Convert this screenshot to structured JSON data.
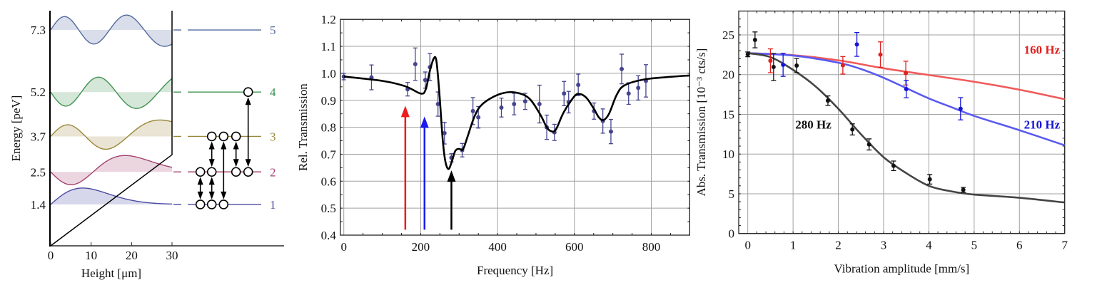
{
  "chart_data": [
    {
      "panel": "energy-levels",
      "type": "line",
      "xlabel": "Height [μm]",
      "ylabel": "Energy [peV]",
      "xlim": [
        0,
        30
      ],
      "xticks": [
        0,
        10,
        20,
        30
      ],
      "ylim": [
        0,
        8
      ],
      "levels": [
        {
          "n": 1,
          "energy": 1.4,
          "tick": "1.4",
          "label": "1",
          "color": "#4b4ba3"
        },
        {
          "n": 2,
          "energy": 2.5,
          "tick": "2.5",
          "label": "2",
          "color": "#a3436f"
        },
        {
          "n": 3,
          "energy": 3.7,
          "tick": "3.7",
          "label": "3",
          "color": "#9a8638"
        },
        {
          "n": 4,
          "energy": 5.2,
          "tick": "5.2",
          "label": "4",
          "color": "#3f9350"
        },
        {
          "n": 5,
          "energy": 7.3,
          "tick": "7.3",
          "label": "5",
          "color": "#52699f"
        }
      ],
      "transition_columns": [
        {
          "states": [
            1,
            2
          ]
        },
        {
          "states": [
            1,
            2,
            3
          ]
        },
        {
          "states": [
            1,
            3
          ]
        },
        {
          "states": [
            2,
            3
          ]
        },
        {
          "states": [
            2,
            4
          ]
        }
      ]
    },
    {
      "panel": "rel-transmission-spectrum",
      "type": "scatter",
      "xlabel": "Frequency [Hz]",
      "ylabel": "Rel. Transmission",
      "xlim": [
        -9,
        900
      ],
      "ylim": [
        0.4,
        1.2
      ],
      "xticks": [
        0,
        200,
        400,
        600,
        800
      ],
      "yticks": [
        "0.4",
        "0.5",
        "0.6",
        "0.7",
        "0.8",
        "0.9",
        "1.0",
        "1.1",
        "1.2"
      ],
      "grid": true,
      "point_color": "#45458f",
      "points": [
        [
          0,
          0.988,
          0.012
        ],
        [
          72,
          0.985,
          0.046
        ],
        [
          166,
          0.941,
          0.025
        ],
        [
          186,
          1.034,
          0.06
        ],
        [
          212,
          0.975,
          0.03
        ],
        [
          224,
          1.023,
          0.05
        ],
        [
          245,
          0.886,
          0.045
        ],
        [
          262,
          0.778,
          0.04
        ],
        [
          280,
          0.687,
          0.015
        ],
        [
          308,
          0.715,
          0.025
        ],
        [
          336,
          0.86,
          0.05
        ],
        [
          350,
          0.837,
          0.04
        ],
        [
          410,
          0.873,
          0.035
        ],
        [
          443,
          0.886,
          0.04
        ],
        [
          472,
          0.896,
          0.03
        ],
        [
          509,
          0.886,
          0.07
        ],
        [
          528,
          0.8,
          0.045
        ],
        [
          548,
          0.781,
          0.03
        ],
        [
          573,
          0.925,
          0.045
        ],
        [
          585,
          0.893,
          0.04
        ],
        [
          610,
          0.957,
          0.04
        ],
        [
          651,
          0.86,
          0.03
        ],
        [
          674,
          0.823,
          0.045
        ],
        [
          695,
          0.784,
          0.045
        ],
        [
          723,
          1.016,
          0.055
        ],
        [
          741,
          0.925,
          0.04
        ],
        [
          766,
          0.946,
          0.045
        ],
        [
          786,
          0.972,
          0.06
        ]
      ],
      "fit": [
        [
          0,
          0.988
        ],
        [
          100,
          0.972
        ],
        [
          160,
          0.952
        ],
        [
          200,
          0.925
        ],
        [
          213,
          0.94
        ],
        [
          224,
          1.01
        ],
        [
          234,
          1.055
        ],
        [
          241,
          1.045
        ],
        [
          249,
          0.92
        ],
        [
          257,
          0.76
        ],
        [
          264,
          0.675
        ],
        [
          272,
          0.645
        ],
        [
          280,
          0.668
        ],
        [
          290,
          0.712
        ],
        [
          300,
          0.72
        ],
        [
          310,
          0.718
        ],
        [
          322,
          0.765
        ],
        [
          340,
          0.84
        ],
        [
          360,
          0.885
        ],
        [
          400,
          0.92
        ],
        [
          440,
          0.93
        ],
        [
          480,
          0.91
        ],
        [
          510,
          0.85
        ],
        [
          528,
          0.8
        ],
        [
          540,
          0.785
        ],
        [
          552,
          0.792
        ],
        [
          572,
          0.855
        ],
        [
          600,
          0.915
        ],
        [
          615,
          0.923
        ],
        [
          632,
          0.908
        ],
        [
          650,
          0.87
        ],
        [
          664,
          0.836
        ],
        [
          676,
          0.827
        ],
        [
          690,
          0.85
        ],
        [
          710,
          0.92
        ],
        [
          730,
          0.955
        ],
        [
          780,
          0.977
        ],
        [
          850,
          0.987
        ],
        [
          900,
          0.992
        ]
      ],
      "arrows": [
        {
          "frequency": 160,
          "from": 0.42,
          "to": 0.88,
          "color": "#ee1c1c"
        },
        {
          "frequency": 210,
          "from": 0.42,
          "to": 0.84,
          "color": "#1a1aee"
        },
        {
          "frequency": 280,
          "from": 0.42,
          "to": 0.64,
          "color": "#000000"
        }
      ]
    },
    {
      "panel": "abs-transmission-vs-amplitude",
      "type": "scatter",
      "xlabel": "Vibration amplitude [mm/s]",
      "ylabel": "Abs. Transmission [10⁻³ cts/s]",
      "xlim": [
        -0.2,
        7
      ],
      "ylim": [
        0,
        28
      ],
      "xticks": [
        0,
        1,
        2,
        3,
        4,
        5,
        6,
        7
      ],
      "yticks": [
        0,
        5,
        10,
        15,
        20,
        25
      ],
      "grid": true,
      "series": [
        {
          "name": "160 Hz",
          "color": "#e02020",
          "line_color": "#f05a5a",
          "label_at": [
            6.1,
            22.6
          ],
          "points": [
            [
              0.5,
              21.74,
              1.5
            ],
            [
              2.1,
              21.17,
              1.1
            ],
            [
              2.93,
              22.52,
              1.6
            ],
            [
              3.49,
              20.19,
              1.5
            ]
          ],
          "fit": [
            [
              0,
              22.7
            ],
            [
              1,
              22.45
            ],
            [
              2,
              21.8
            ],
            [
              3,
              20.8
            ],
            [
              4,
              19.95
            ],
            [
              5,
              19.1
            ],
            [
              6,
              18.1
            ],
            [
              7,
              16.9
            ]
          ]
        },
        {
          "name": "210 Hz",
          "color": "#1414d8",
          "line_color": "#5a5af0",
          "label_at": [
            6.1,
            13.2
          ],
          "points": [
            [
              0.78,
              21.23,
              1.45
            ],
            [
              2.41,
              23.8,
              1.5
            ],
            [
              3.5,
              18.18,
              1.1
            ],
            [
              4.7,
              15.7,
              1.4
            ]
          ],
          "fit": [
            [
              0,
              22.7
            ],
            [
              1,
              22.4
            ],
            [
              2,
              21.5
            ],
            [
              2.5,
              20.7
            ],
            [
              3,
              19.6
            ],
            [
              3.5,
              18.3
            ],
            [
              4,
              17.0
            ],
            [
              4.5,
              15.9
            ],
            [
              5,
              14.8
            ],
            [
              6,
              13.0
            ],
            [
              7,
              11.1
            ]
          ]
        },
        {
          "name": "280 Hz",
          "color": "#111111",
          "line_color": "#444444",
          "label_at": [
            1.05,
            13.2
          ],
          "points": [
            [
              0,
              22.55,
              0.3
            ],
            [
              0.16,
              24.37,
              1.0
            ],
            [
              0.57,
              20.96,
              1.7
            ],
            [
              1.08,
              21.14,
              0.9
            ],
            [
              1.77,
              16.72,
              0.6
            ],
            [
              2.31,
              13.1,
              0.7
            ],
            [
              2.68,
              11.21,
              0.7
            ],
            [
              3.22,
              8.52,
              0.6
            ],
            [
              4.02,
              6.82,
              0.6
            ],
            [
              4.76,
              5.5,
              0.3
            ]
          ],
          "fit": [
            [
              0,
              22.7
            ],
            [
              0.5,
              22.2
            ],
            [
              1,
              20.6
            ],
            [
              1.5,
              18.5
            ],
            [
              2,
              15.7
            ],
            [
              2.5,
              12.5
            ],
            [
              3,
              9.6
            ],
            [
              3.5,
              7.6
            ],
            [
              4,
              6.0
            ],
            [
              4.5,
              5.3
            ],
            [
              5,
              4.9
            ],
            [
              6,
              4.5
            ],
            [
              7,
              3.9
            ]
          ]
        }
      ]
    }
  ]
}
